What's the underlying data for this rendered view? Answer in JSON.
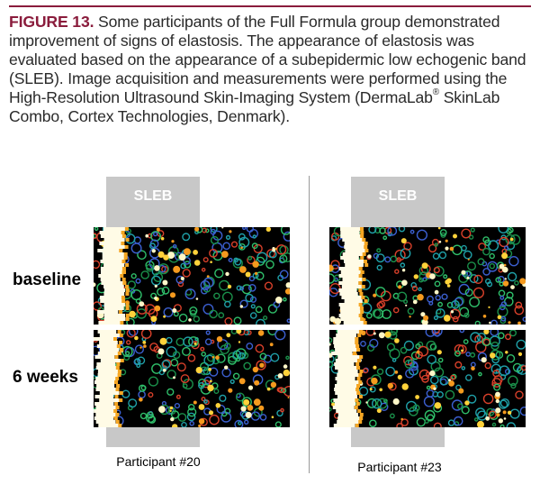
{
  "caption": {
    "figure_label": "FIGURE 13.",
    "text_before_mark": " Some participants of the Full Formula group demonstrated improvement of signs of elastosis. The appearance of elastosis was evaluated based on the appearance of a subepidermic low echogenic band (SLEB). Image acquisition and measurements were performed using the High-Resolution Ultrasound Skin-Imaging System (DermaLab",
    "registered_mark": "®",
    "text_after_mark": " SkinLab Combo, Cortex Technologies, Denmark)."
  },
  "rows": {
    "baseline": "baseline",
    "six_weeks": "6 weeks"
  },
  "panels": {
    "left": {
      "sleb_label": "SLEB",
      "participant": "Participant #20"
    },
    "right": {
      "sleb_label": "SLEB",
      "participant": "Participant #23"
    }
  },
  "colors": {
    "accent": "#8a1c3c",
    "sleb_bar": "#c8c8c8"
  }
}
